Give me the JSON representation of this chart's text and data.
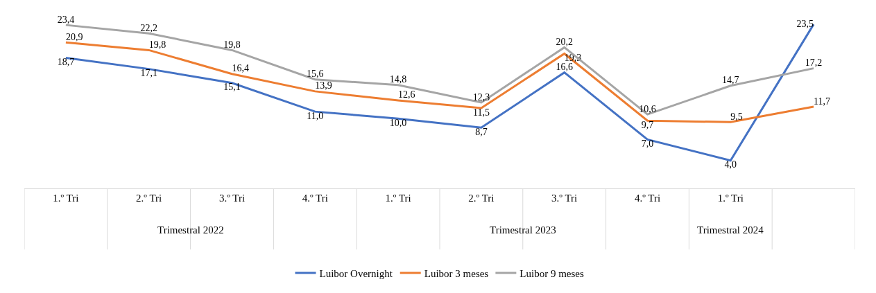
{
  "chart_data": {
    "type": "line",
    "categories": [
      "1.º Tri",
      "2.º Tri",
      "3.º Tri",
      "4.º Tri",
      "1.º Tri",
      "2.º Tri",
      "3.º Tri",
      "4.º Tri",
      "1.º Tri",
      null
    ],
    "series": [
      {
        "name": "Luibor Overnight",
        "color": "#4472c4",
        "values": [
          18.7,
          17.1,
          15.1,
          11.0,
          10.0,
          8.7,
          16.6,
          7.0,
          4.0,
          23.5
        ],
        "value_labels": [
          "18,7",
          "17,1",
          "15,1",
          "11,0",
          "10,0",
          "8,7",
          "16,6",
          "7,0",
          "4,0",
          "23,5"
        ]
      },
      {
        "name": "Luibor 3 meses",
        "color": "#ed7d31",
        "values": [
          20.9,
          19.8,
          16.4,
          13.9,
          12.6,
          11.5,
          19.3,
          9.7,
          9.5,
          11.7
        ],
        "value_labels": [
          "20,9",
          "19,8",
          "16,4",
          "13,9",
          "12,6",
          "11,5",
          "19,3",
          "9,7",
          "9,5",
          "11,7"
        ]
      },
      {
        "name": "Luibor 9 meses",
        "color": "#a5a5a5",
        "values": [
          23.4,
          22.2,
          19.8,
          15.6,
          14.8,
          12.3,
          20.2,
          10.6,
          14.7,
          17.2
        ],
        "value_labels": [
          "23,4",
          "22,2",
          "19,8",
          "15,6",
          "14,8",
          "12,3",
          "20,2",
          "10,6",
          "14,7",
          "17,2"
        ]
      }
    ],
    "annotations": [
      "Trimestral 2022",
      "Trimestral 2023",
      "Trimestral 2024"
    ],
    "legend": "bottom",
    "grid": false,
    "marker": "none",
    "line_style": "solid"
  }
}
